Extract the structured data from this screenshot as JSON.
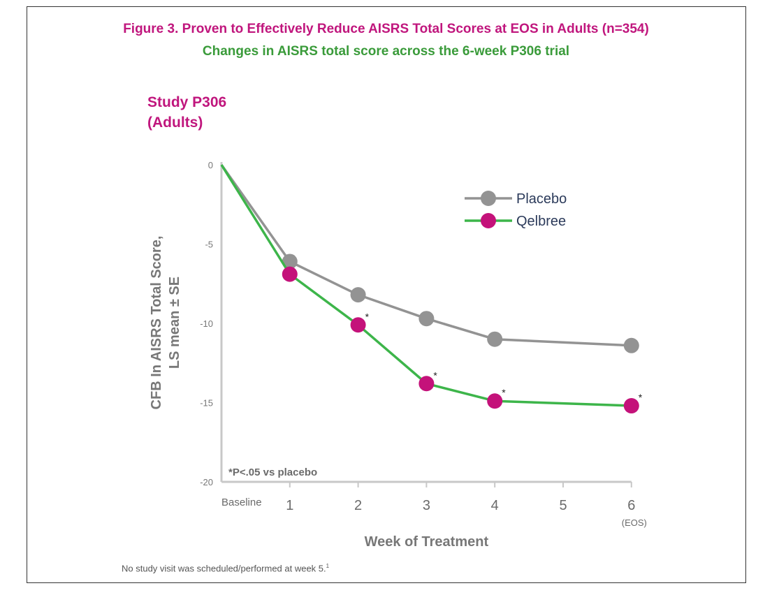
{
  "figure": {
    "title": "Figure 3. Proven to Effectively Reduce AISRS Total Scores at EOS in Adults (n=354)",
    "subtitle": "Changes in AISRS total score across the 6-week P306 trial",
    "study_line1": "Study P306",
    "study_line2": "(Adults)",
    "footnote": "No study visit was scheduled/performed at week 5.",
    "footnote_sup": "1",
    "significance_note": "*P<.05 vs placebo"
  },
  "colors": {
    "title": "#c0167d",
    "subtitle": "#3a9b3a",
    "placebo": "#939393",
    "qelbree_marker": "#c4127a",
    "qelbree_line": "#3db54a",
    "axis": "#c8c8c8",
    "axis_text": "#777777"
  },
  "chart_data": {
    "type": "line",
    "ylabel_line1": "CFB In AISRS Total Score,",
    "ylabel_line2": "LS mean ± SE",
    "xlabel": "Week of Treatment",
    "ylim": [
      -20,
      0
    ],
    "yticks": [
      0,
      -5,
      -10,
      -15,
      -20
    ],
    "x_ticks": [
      {
        "x": 0,
        "label": "Baseline"
      },
      {
        "x": 1,
        "label": "1"
      },
      {
        "x": 2,
        "label": "2"
      },
      {
        "x": 3,
        "label": "3"
      },
      {
        "x": 4,
        "label": "4"
      },
      {
        "x": 5,
        "label": "5"
      },
      {
        "x": 6,
        "label": "6",
        "sublabel": "(EOS)"
      }
    ],
    "legend_position": "top-right",
    "series": [
      {
        "name": "Placebo",
        "points": [
          {
            "x": 0,
            "y": 0,
            "marker": false
          },
          {
            "x": 1,
            "y": -6.1
          },
          {
            "x": 2,
            "y": -8.2
          },
          {
            "x": 3,
            "y": -9.7
          },
          {
            "x": 4,
            "y": -11.0
          },
          {
            "x": 6,
            "y": -11.4
          }
        ]
      },
      {
        "name": "Qelbree",
        "points": [
          {
            "x": 0,
            "y": 0,
            "marker": false
          },
          {
            "x": 1,
            "y": -6.9
          },
          {
            "x": 2,
            "y": -10.1,
            "significant": true
          },
          {
            "x": 3,
            "y": -13.8,
            "significant": true
          },
          {
            "x": 4,
            "y": -14.9,
            "significant": true
          },
          {
            "x": 6,
            "y": -15.2,
            "significant": true
          }
        ]
      }
    ],
    "significance_mark": "*"
  }
}
